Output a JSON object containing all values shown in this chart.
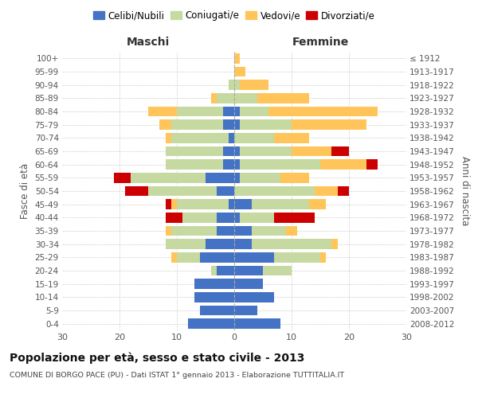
{
  "age_groups": [
    "0-4",
    "5-9",
    "10-14",
    "15-19",
    "20-24",
    "25-29",
    "30-34",
    "35-39",
    "40-44",
    "45-49",
    "50-54",
    "55-59",
    "60-64",
    "65-69",
    "70-74",
    "75-79",
    "80-84",
    "85-89",
    "90-94",
    "95-99",
    "100+"
  ],
  "birth_years": [
    "2008-2012",
    "2003-2007",
    "1998-2002",
    "1993-1997",
    "1988-1992",
    "1983-1987",
    "1978-1982",
    "1973-1977",
    "1968-1972",
    "1963-1967",
    "1958-1962",
    "1953-1957",
    "1948-1952",
    "1943-1947",
    "1938-1942",
    "1933-1937",
    "1928-1932",
    "1923-1927",
    "1918-1922",
    "1913-1917",
    "≤ 1912"
  ],
  "maschi": {
    "celibi": [
      8,
      6,
      7,
      7,
      3,
      6,
      5,
      3,
      3,
      1,
      3,
      5,
      2,
      2,
      1,
      2,
      2,
      0,
      0,
      0,
      0
    ],
    "coniugati": [
      0,
      0,
      0,
      0,
      1,
      4,
      7,
      8,
      6,
      9,
      12,
      13,
      10,
      10,
      10,
      9,
      8,
      3,
      1,
      0,
      0
    ],
    "vedovi": [
      0,
      0,
      0,
      0,
      0,
      1,
      0,
      1,
      0,
      1,
      0,
      0,
      0,
      0,
      1,
      2,
      5,
      1,
      0,
      0,
      0
    ],
    "divorziati": [
      0,
      0,
      0,
      0,
      0,
      0,
      0,
      0,
      3,
      1,
      4,
      3,
      0,
      0,
      0,
      0,
      0,
      0,
      0,
      0,
      0
    ]
  },
  "femmine": {
    "celibi": [
      8,
      4,
      7,
      5,
      5,
      7,
      3,
      3,
      1,
      3,
      0,
      1,
      1,
      1,
      0,
      1,
      1,
      0,
      0,
      0,
      0
    ],
    "coniugati": [
      0,
      0,
      0,
      0,
      5,
      8,
      14,
      6,
      6,
      10,
      14,
      7,
      14,
      9,
      7,
      9,
      5,
      4,
      1,
      0,
      0
    ],
    "vedovi": [
      0,
      0,
      0,
      0,
      0,
      1,
      1,
      2,
      0,
      3,
      4,
      5,
      8,
      7,
      6,
      13,
      19,
      9,
      5,
      2,
      1
    ],
    "divorziati": [
      0,
      0,
      0,
      0,
      0,
      0,
      0,
      0,
      7,
      0,
      2,
      0,
      2,
      3,
      0,
      0,
      0,
      0,
      0,
      0,
      0
    ]
  },
  "colors": {
    "celibi": "#4472C4",
    "coniugati": "#C6D9A0",
    "vedovi": "#FFC55A",
    "divorziati": "#CC0000"
  },
  "legend_labels": [
    "Celibi/Nubili",
    "Coniugati/e",
    "Vedovi/e",
    "Divorziati/e"
  ],
  "xlim": 30,
  "title": "Popolazione per età, sesso e stato civile - 2013",
  "subtitle": "COMUNE DI BORGO PACE (PU) - Dati ISTAT 1° gennaio 2013 - Elaborazione TUTTITALIA.IT",
  "ylabel_left": "Fasce di età",
  "ylabel_right": "Anni di nascita",
  "xlabel_left": "Maschi",
  "xlabel_right": "Femmine",
  "background_color": "#ffffff",
  "grid_color": "#bbbbbb"
}
